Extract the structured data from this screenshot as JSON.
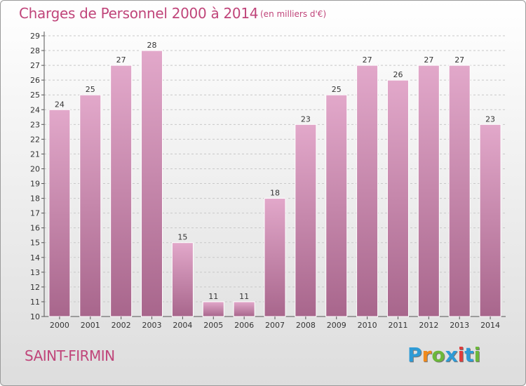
{
  "title": "Charges de Personnel 2000 à 2014",
  "subtitle": "(en milliers d'€)",
  "commune": "SAINT-FIRMIN",
  "logo": {
    "text": "Proxiti",
    "letters": [
      {
        "ch": "P",
        "color": "#2e9bd6"
      },
      {
        "ch": "r",
        "color": "#f08a1c"
      },
      {
        "ch": "o",
        "color": "#6cb83a"
      },
      {
        "ch": "x",
        "color": "#2e9bd6"
      },
      {
        "ch": "i",
        "color": "#e03c3c"
      },
      {
        "ch": "t",
        "color": "#2e9bd6"
      },
      {
        "ch": "i",
        "color": "#6cb83a"
      }
    ]
  },
  "colors": {
    "accent_text": "#c0457a",
    "bar_top": "#e2a8ca",
    "bar_bottom": "#a8668c",
    "bar_border": "#ffffff",
    "grid": "#c8c8c8"
  },
  "chart_data": {
    "type": "bar",
    "title": "Charges de Personnel 2000 à 2014",
    "categories": [
      "2000",
      "2001",
      "2002",
      "2003",
      "2004",
      "2005",
      "2006",
      "2007",
      "2008",
      "2009",
      "2010",
      "2011",
      "2012",
      "2013",
      "2014"
    ],
    "values": [
      24,
      25,
      27,
      28,
      15,
      11,
      11,
      18,
      23,
      25,
      27,
      26,
      27,
      27,
      23
    ],
    "ylim": [
      10,
      29
    ],
    "yticks": [
      10,
      11,
      12,
      13,
      14,
      15,
      16,
      17,
      18,
      19,
      20,
      21,
      22,
      23,
      24,
      25,
      26,
      27,
      28,
      29
    ],
    "grid": true,
    "data_labels": true
  }
}
